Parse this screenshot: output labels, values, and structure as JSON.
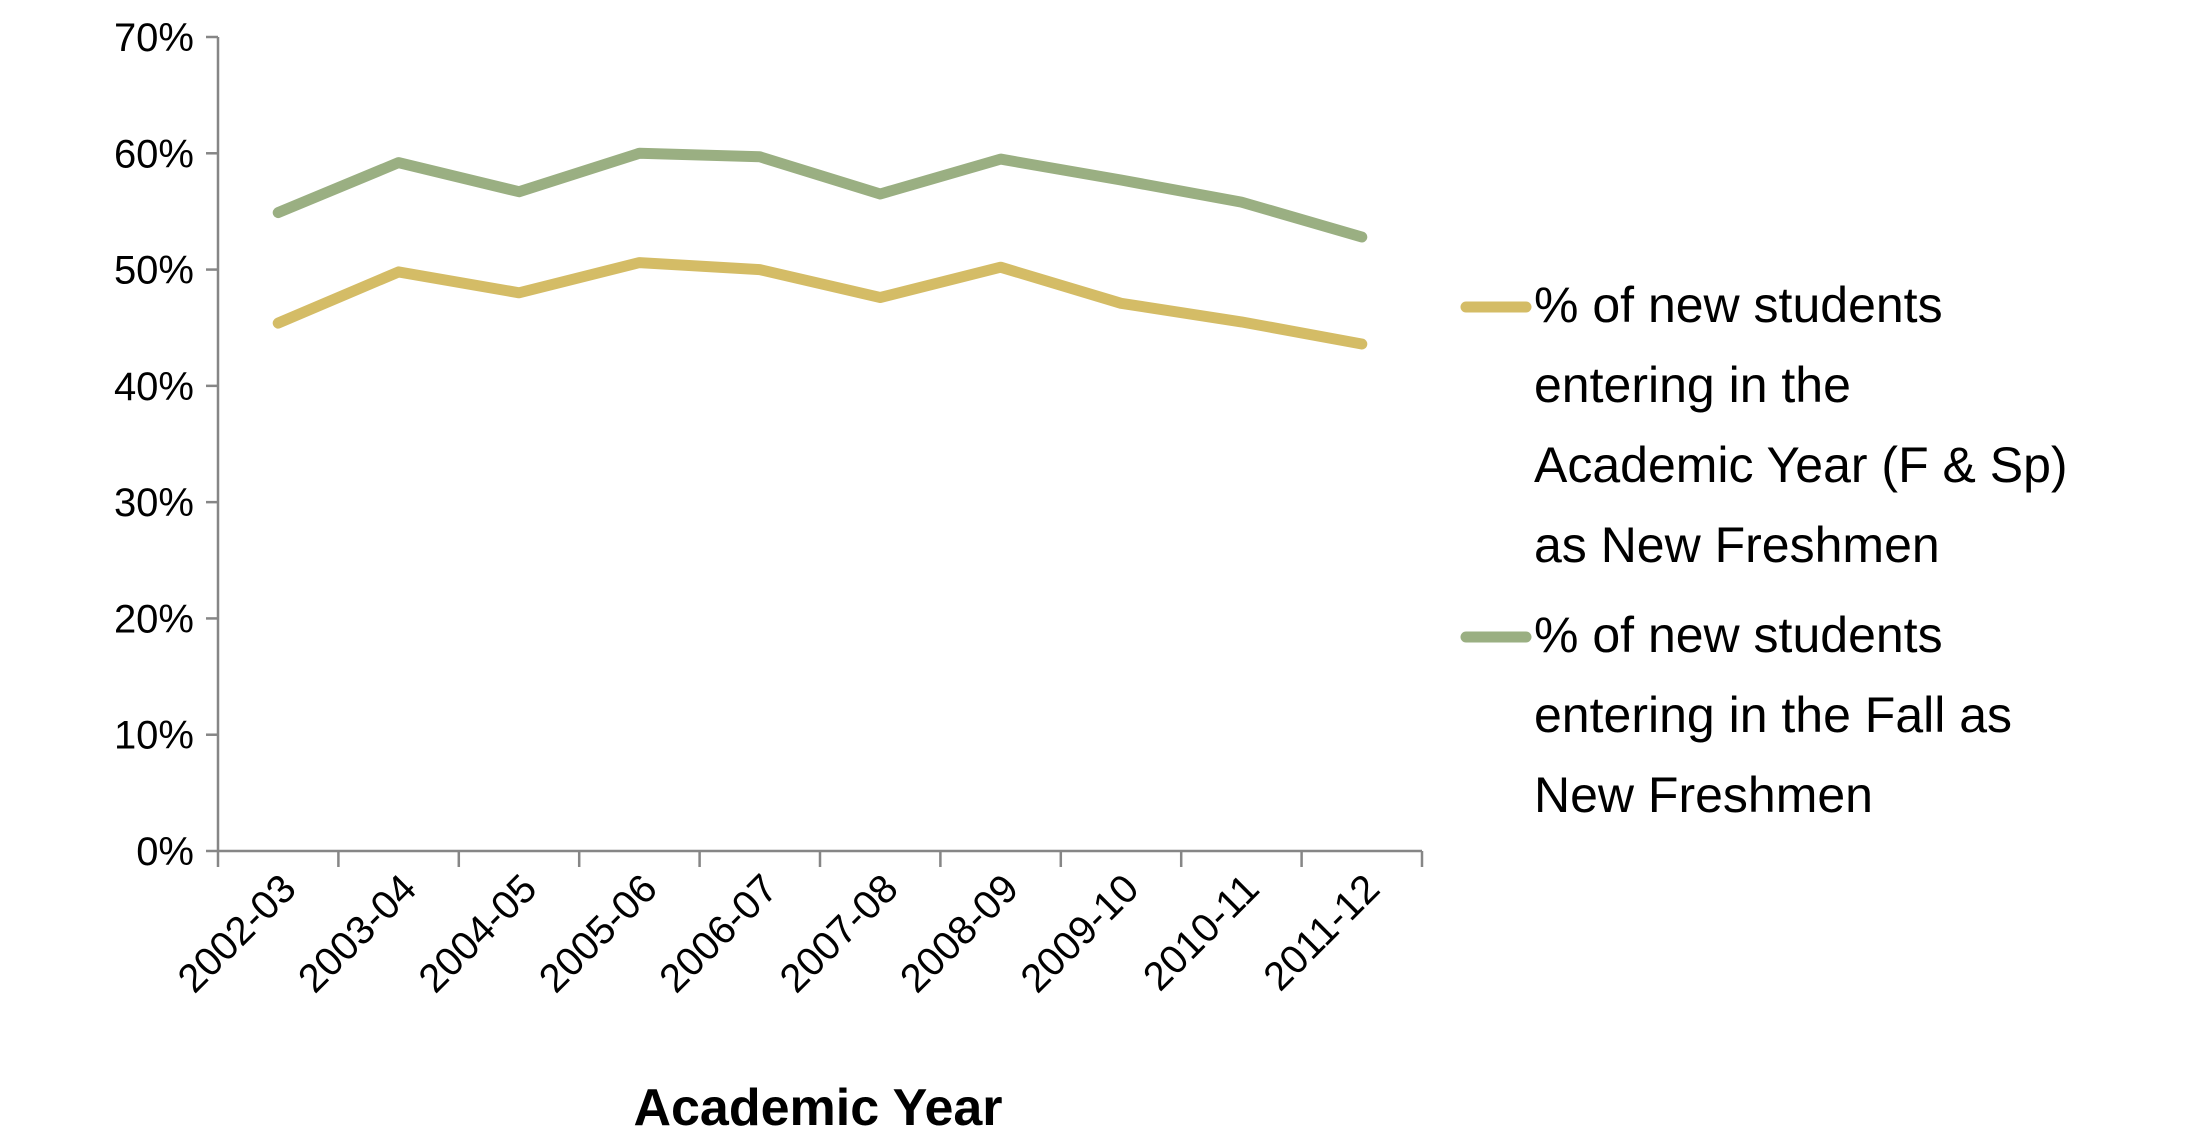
{
  "chart_data": {
    "type": "line",
    "title": "",
    "xlabel": "Academic Year",
    "ylabel": "",
    "categories": [
      "2002-03",
      "2003-04",
      "2004-05",
      "2005-06",
      "2006-07",
      "2007-08",
      "2008-09",
      "2009-10",
      "2010-11",
      "2011-12"
    ],
    "ylim": [
      0,
      70
    ],
    "yticks": [
      "0%",
      "10%",
      "20%",
      "30%",
      "40%",
      "50%",
      "60%",
      "70%"
    ],
    "grid": false,
    "legend_position": "right",
    "series": [
      {
        "name": "% of new students entering in the Academic Year (F & Sp) as New Freshmen",
        "legend_lines": [
          "% of new students",
          "entering in the",
          "Academic Year (F & Sp)",
          "as New Freshmen"
        ],
        "color": "#D4BC66",
        "values": [
          45.4,
          49.8,
          48.0,
          50.6,
          50.0,
          47.6,
          50.2,
          47.1,
          45.5,
          43.6
        ]
      },
      {
        "name": "% of new students entering in the Fall as New Freshmen",
        "legend_lines": [
          "% of new students",
          "entering in the Fall as",
          "New Freshmen"
        ],
        "color": "#9AAF82",
        "values": [
          54.9,
          59.2,
          56.7,
          60.0,
          59.7,
          56.5,
          59.5,
          57.7,
          55.8,
          52.8
        ]
      }
    ]
  }
}
